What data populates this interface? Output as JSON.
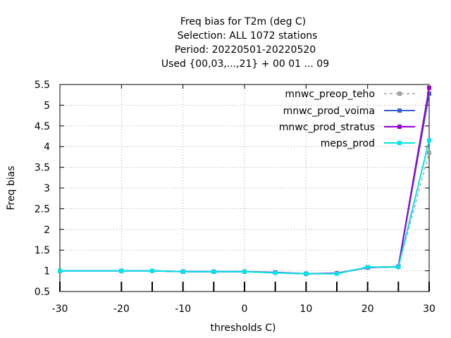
{
  "colors": {
    "mnwc_preop_teho": "#a0a0a0",
    "mnwc_prod_voima": "#3a5fcd",
    "mnwc_prod_stratus": "#9400d3",
    "meps_prod": "#00e5e5"
  },
  "chart_data": {
    "type": "line",
    "title_lines": [
      "Freq bias  for T2m (deg C)",
      "Selection: ALL    1072 stations",
      "Period: 20220501-20220520",
      "Used {00,03,...,21} + 00 01 ... 09"
    ],
    "xlabel": "thresholds C)",
    "ylabel": "Freq bias",
    "xlim": [
      -30,
      30
    ],
    "ylim": [
      0.5,
      5.5
    ],
    "xticks": [
      "-30",
      "-20",
      "-10",
      "0",
      "10",
      "20",
      "30"
    ],
    "yticks": [
      "0.5",
      "1",
      "1.5",
      "2",
      "2.5",
      "3",
      "3.5",
      "4",
      "4.5",
      "5",
      "5.5"
    ],
    "grid": true,
    "legend_position": "top-right",
    "x": [
      -30,
      -20,
      -15,
      -10,
      -5,
      0,
      5,
      10,
      15,
      20,
      25,
      30
    ],
    "series": [
      {
        "name": "mnwc_preop_teho",
        "values": [
          1.0,
          1.0,
          1.0,
          0.98,
          0.98,
          0.98,
          0.96,
          0.93,
          0.94,
          1.08,
          1.1,
          3.85
        ]
      },
      {
        "name": "mnwc_prod_voima",
        "values": [
          1.0,
          1.0,
          1.0,
          0.98,
          0.98,
          0.98,
          0.96,
          0.93,
          0.94,
          1.08,
          1.1,
          5.28
        ]
      },
      {
        "name": "mnwc_prod_stratus",
        "values": [
          1.0,
          1.0,
          1.0,
          0.98,
          0.98,
          0.98,
          0.96,
          0.93,
          0.94,
          1.08,
          1.1,
          5.42
        ]
      },
      {
        "name": "meps_prod",
        "values": [
          1.0,
          1.0,
          1.0,
          0.98,
          0.98,
          0.98,
          0.95,
          0.93,
          0.93,
          1.09,
          1.09,
          4.15
        ]
      }
    ]
  }
}
